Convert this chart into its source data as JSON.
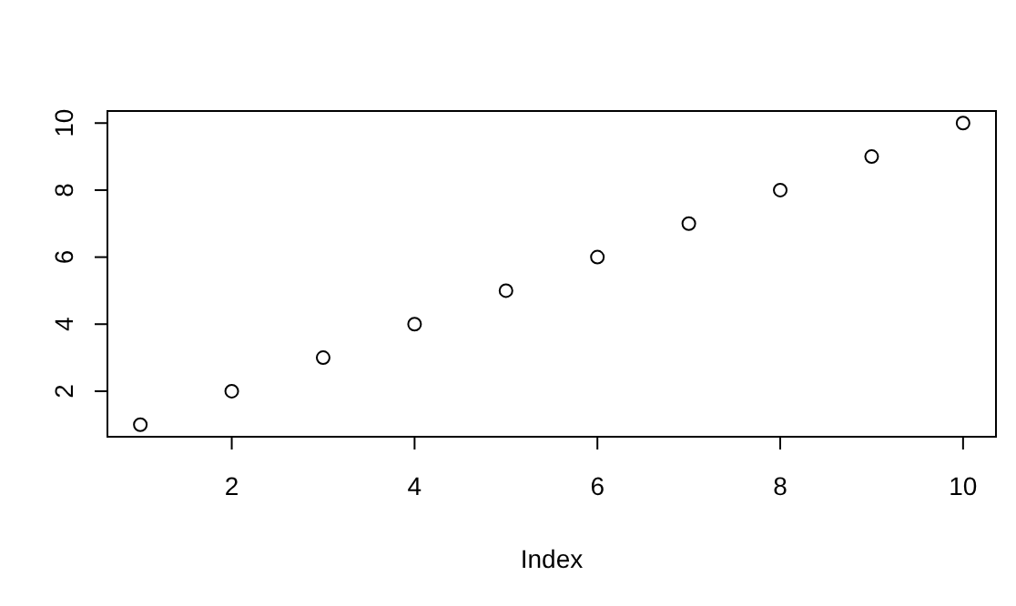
{
  "chart_data": {
    "type": "scatter",
    "xlabel": "Index",
    "x": [
      1,
      2,
      3,
      4,
      5,
      6,
      7,
      8,
      9,
      10
    ],
    "values": [
      1,
      2,
      3,
      4,
      5,
      6,
      7,
      8,
      9,
      10
    ],
    "color": "#000000",
    "marker": "circle",
    "xlim": [
      0.64,
      10.36
    ],
    "ylim": [
      0.64,
      10.36
    ],
    "xticks": [
      2,
      4,
      6,
      8,
      10
    ],
    "yticks": [
      2,
      4,
      6,
      8,
      10
    ],
    "grid": false
  }
}
